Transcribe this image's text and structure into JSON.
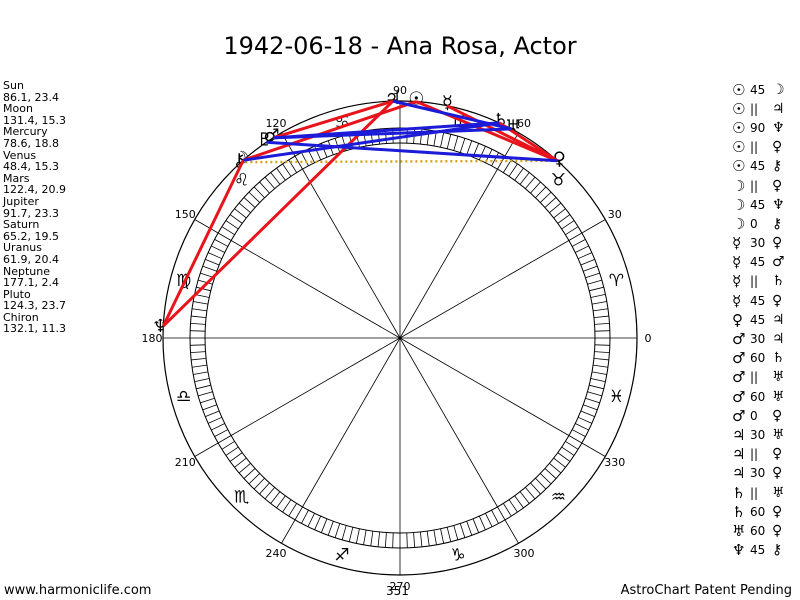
{
  "title": "1942-06-18 - Ana Rosa, Actor",
  "planet_list": [
    {
      "name": "Sun",
      "values": "86.1, 23.4"
    },
    {
      "name": "Moon",
      "values": "131.4, 15.3"
    },
    {
      "name": "Mercury",
      "values": "78.6, 18.8"
    },
    {
      "name": "Venus",
      "values": "48.4, 15.3"
    },
    {
      "name": "Mars",
      "values": "122.4, 20.9"
    },
    {
      "name": "Jupiter",
      "values": "91.7, 23.3"
    },
    {
      "name": "Saturn",
      "values": "65.2, 19.5"
    },
    {
      "name": "Uranus",
      "values": "61.9, 20.4"
    },
    {
      "name": "Neptune",
      "values": "177.1, 2.4"
    },
    {
      "name": "Pluto",
      "values": "124.3, 23.7"
    },
    {
      "name": "Chiron",
      "values": "132.1, 11.3"
    }
  ],
  "aspects": [
    {
      "a": "☉",
      "angle": "45",
      "b": "☽"
    },
    {
      "a": "☉",
      "angle": "||",
      "b": "♃"
    },
    {
      "a": "☉",
      "angle": "90",
      "b": "♆"
    },
    {
      "a": "☉",
      "angle": "||",
      "b": "♀"
    },
    {
      "a": "☉",
      "angle": "45",
      "b": "⚷"
    },
    {
      "a": "☽",
      "angle": "||",
      "b": "♀"
    },
    {
      "a": "☽",
      "angle": "45",
      "b": "♆"
    },
    {
      "a": "☽",
      "angle": "0",
      "b": "⚷"
    },
    {
      "a": "☿",
      "angle": "30",
      "b": "♀"
    },
    {
      "a": "☿",
      "angle": "45",
      "b": "♂"
    },
    {
      "a": "☿",
      "angle": "||",
      "b": "♄"
    },
    {
      "a": "☿",
      "angle": "45",
      "b": "♀"
    },
    {
      "a": "♀",
      "angle": "45",
      "b": "♃"
    },
    {
      "a": "♂",
      "angle": "30",
      "b": "♃"
    },
    {
      "a": "♂",
      "angle": "60",
      "b": "♄"
    },
    {
      "a": "♂",
      "angle": "||",
      "b": "♅"
    },
    {
      "a": "♂",
      "angle": "60",
      "b": "♅"
    },
    {
      "a": "♂",
      "angle": "0",
      "b": "♀"
    },
    {
      "a": "♃",
      "angle": "30",
      "b": "♅"
    },
    {
      "a": "♃",
      "angle": "||",
      "b": "♀"
    },
    {
      "a": "♃",
      "angle": "30",
      "b": "♀"
    },
    {
      "a": "♄",
      "angle": "||",
      "b": "♅"
    },
    {
      "a": "♄",
      "angle": "60",
      "b": "♀"
    },
    {
      "a": "♅",
      "angle": "60",
      "b": "♀"
    },
    {
      "a": "♆",
      "angle": "45",
      "b": "⚷"
    }
  ],
  "wheel": {
    "degree_labels": [
      {
        "text": "0",
        "deg": 0
      },
      {
        "text": "30",
        "deg": 30
      },
      {
        "text": "60",
        "deg": 60
      },
      {
        "text": "90",
        "deg": 90
      },
      {
        "text": "120",
        "deg": 120
      },
      {
        "text": "150",
        "deg": 150
      },
      {
        "text": "180",
        "deg": 180
      },
      {
        "text": "210",
        "deg": 210
      },
      {
        "text": "240",
        "deg": 240
      },
      {
        "text": "270",
        "deg": 270
      },
      {
        "text": "300",
        "deg": 300
      },
      {
        "text": "330",
        "deg": 330
      }
    ],
    "sign_glyphs": [
      {
        "glyph": "♈",
        "deg": 15
      },
      {
        "glyph": "♉",
        "deg": 45
      },
      {
        "glyph": "♊",
        "deg": 75
      },
      {
        "glyph": "♋",
        "deg": 105
      },
      {
        "glyph": "♌",
        "deg": 135
      },
      {
        "glyph": "♍",
        "deg": 165
      },
      {
        "glyph": "♎",
        "deg": 195
      },
      {
        "glyph": "♏",
        "deg": 225
      },
      {
        "glyph": "♐",
        "deg": 255
      },
      {
        "glyph": "♑",
        "deg": 285
      },
      {
        "glyph": "♒",
        "deg": 315
      },
      {
        "glyph": "♓",
        "deg": 345
      }
    ],
    "planets": [
      {
        "glyph": "☉",
        "deg": 86.1
      },
      {
        "glyph": "☽",
        "deg": 131.4
      },
      {
        "glyph": "☿",
        "deg": 78.6
      },
      {
        "glyph": "♀",
        "deg": 48.4
      },
      {
        "glyph": "♂",
        "deg": 122.4
      },
      {
        "glyph": "♃",
        "deg": 91.7
      },
      {
        "glyph": "♄",
        "deg": 65.2
      },
      {
        "glyph": "♅",
        "deg": 61.9
      },
      {
        "glyph": "♆",
        "deg": 177.1
      },
      {
        "glyph": "♇",
        "deg": 124.3
      },
      {
        "glyph": "⚷",
        "deg": 132.1
      }
    ],
    "red_lines": [
      [
        86.1,
        131.4
      ],
      [
        91.7,
        177.1
      ],
      [
        78.6,
        48.4
      ],
      [
        48.4,
        86.1
      ],
      [
        122.4,
        91.7
      ],
      [
        131.4,
        177.1
      ],
      [
        65.2,
        48.4
      ]
    ],
    "blue_lines": [
      [
        122.4,
        65.2
      ],
      [
        122.4,
        61.9
      ],
      [
        91.7,
        61.9
      ],
      [
        131.4,
        65.2
      ],
      [
        124.3,
        48.4
      ]
    ],
    "dotted_lines": [
      [
        48.4,
        132.1
      ],
      [
        86.1,
        48.4
      ]
    ],
    "colors": {
      "red": "#e8131b",
      "blue": "#1b1bd8",
      "dotted": "#d4a017"
    }
  },
  "footer": {
    "left": "www.harmoniclife.com",
    "right": "AstroChart Patent Pending",
    "mid": "351"
  }
}
